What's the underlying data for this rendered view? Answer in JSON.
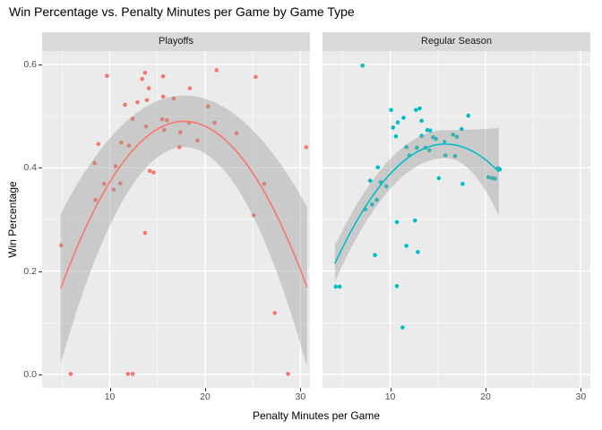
{
  "title": "Win Percentage vs. Penalty Minutes per Game by Game Type",
  "colors": {
    "playoffs_accent": "#F8766D",
    "regular_season_accent": "#00BFC4",
    "panel_background": "#EBEBEB",
    "strip_background": "#D9D9D9",
    "gridline": "#FFFFFF",
    "confidence_band": "#999999",
    "axis_text": "#4D4D4D",
    "title_text": "#000000"
  },
  "chart_data": {
    "type": "scatter",
    "title": "Win Percentage vs. Penalty Minutes per Game by Game Type",
    "xlabel": "Penalty Minutes per Game",
    "ylabel": "Win Percentage",
    "legend_position": "none",
    "grid": "on",
    "xlim": [
      2.9,
      31.0
    ],
    "ylim": [
      -0.026,
      0.626
    ],
    "x_ticks": [
      10,
      20,
      30
    ],
    "x_minor_ticks": [
      5,
      15,
      25
    ],
    "y_ticks": [
      0.0,
      0.2,
      0.4,
      0.6
    ],
    "y_minor_ticks": [
      0.1,
      0.3,
      0.5
    ],
    "facets": [
      {
        "label": "Playoffs",
        "color": "#F8766D",
        "points": [
          [
            9.7,
            0.578
          ],
          [
            13.7,
            0.584
          ],
          [
            13.4,
            0.572
          ],
          [
            14.1,
            0.554
          ],
          [
            15.6,
            0.577
          ],
          [
            15.6,
            0.538
          ],
          [
            11.6,
            0.522
          ],
          [
            12.9,
            0.527
          ],
          [
            13.9,
            0.531
          ],
          [
            16.7,
            0.534
          ],
          [
            12.4,
            0.495
          ],
          [
            15.5,
            0.494
          ],
          [
            16.0,
            0.492
          ],
          [
            13.8,
            0.48
          ],
          [
            15.7,
            0.473
          ],
          [
            11.2,
            0.449
          ],
          [
            12.0,
            0.443
          ],
          [
            8.8,
            0.446
          ],
          [
            8.4,
            0.409
          ],
          [
            10.6,
            0.403
          ],
          [
            14.2,
            0.394
          ],
          [
            14.6,
            0.391
          ],
          [
            9.4,
            0.369
          ],
          [
            10.4,
            0.358
          ],
          [
            11.1,
            0.37
          ],
          [
            8.5,
            0.338
          ],
          [
            4.9,
            0.25
          ],
          [
            13.7,
            0.274
          ],
          [
            21.2,
            0.589
          ],
          [
            25.3,
            0.576
          ],
          [
            18.4,
            0.554
          ],
          [
            20.3,
            0.519
          ],
          [
            18.3,
            0.487
          ],
          [
            21.0,
            0.487
          ],
          [
            17.4,
            0.469
          ],
          [
            19.2,
            0.453
          ],
          [
            23.3,
            0.467
          ],
          [
            17.3,
            0.44
          ],
          [
            30.6,
            0.44
          ],
          [
            26.2,
            0.369
          ],
          [
            25.1,
            0.308
          ],
          [
            27.3,
            0.119
          ],
          [
            5.9,
            0.001
          ],
          [
            11.9,
            0.001
          ],
          [
            12.4,
            0.001
          ],
          [
            28.7,
            0.001
          ]
        ],
        "smooth": {
          "x_min": 4.85,
          "x_max": 30.7,
          "peak_x": 17.8,
          "peak_y": 0.49,
          "a": -0.00193,
          "band_half_width": {
            "left": 0.145,
            "center": 0.05,
            "right": 0.155
          }
        }
      },
      {
        "label": "Regular Season",
        "color": "#00BFC4",
        "points": [
          [
            7.1,
            0.598
          ],
          [
            10.1,
            0.512
          ],
          [
            12.7,
            0.512
          ],
          [
            13.1,
            0.515
          ],
          [
            11.4,
            0.497
          ],
          [
            13.3,
            0.491
          ],
          [
            10.8,
            0.488
          ],
          [
            10.3,
            0.478
          ],
          [
            10.6,
            0.461
          ],
          [
            13.3,
            0.462
          ],
          [
            13.9,
            0.473
          ],
          [
            14.2,
            0.472
          ],
          [
            14.5,
            0.459
          ],
          [
            14.8,
            0.456
          ],
          [
            17.5,
            0.475
          ],
          [
            18.2,
            0.501
          ],
          [
            16.6,
            0.464
          ],
          [
            17.0,
            0.46
          ],
          [
            15.7,
            0.45
          ],
          [
            13.7,
            0.439
          ],
          [
            14.1,
            0.434
          ],
          [
            12.8,
            0.439
          ],
          [
            11.7,
            0.44
          ],
          [
            12.0,
            0.424
          ],
          [
            15.8,
            0.424
          ],
          [
            16.8,
            0.423
          ],
          [
            8.7,
            0.401
          ],
          [
            7.9,
            0.375
          ],
          [
            9.0,
            0.372
          ],
          [
            9.6,
            0.364
          ],
          [
            15.1,
            0.38
          ],
          [
            8.6,
            0.338
          ],
          [
            8.1,
            0.329
          ],
          [
            21.3,
            0.399
          ],
          [
            21.5,
            0.397
          ],
          [
            20.3,
            0.382
          ],
          [
            20.7,
            0.38
          ],
          [
            21.0,
            0.379
          ],
          [
            17.6,
            0.369
          ],
          [
            7.4,
            0.32
          ],
          [
            10.7,
            0.295
          ],
          [
            12.6,
            0.298
          ],
          [
            11.7,
            0.249
          ],
          [
            12.9,
            0.237
          ],
          [
            8.4,
            0.231
          ],
          [
            10.7,
            0.171
          ],
          [
            4.3,
            0.17
          ],
          [
            4.7,
            0.17
          ],
          [
            11.3,
            0.091
          ]
        ],
        "smooth": {
          "x_min": 4.2,
          "x_max": 21.4,
          "peak_x": 15.8,
          "peak_y": 0.446,
          "a": -0.00172,
          "band_half_width": {
            "left": 0.035,
            "center": 0.027,
            "right": 0.085
          }
        }
      }
    ]
  }
}
